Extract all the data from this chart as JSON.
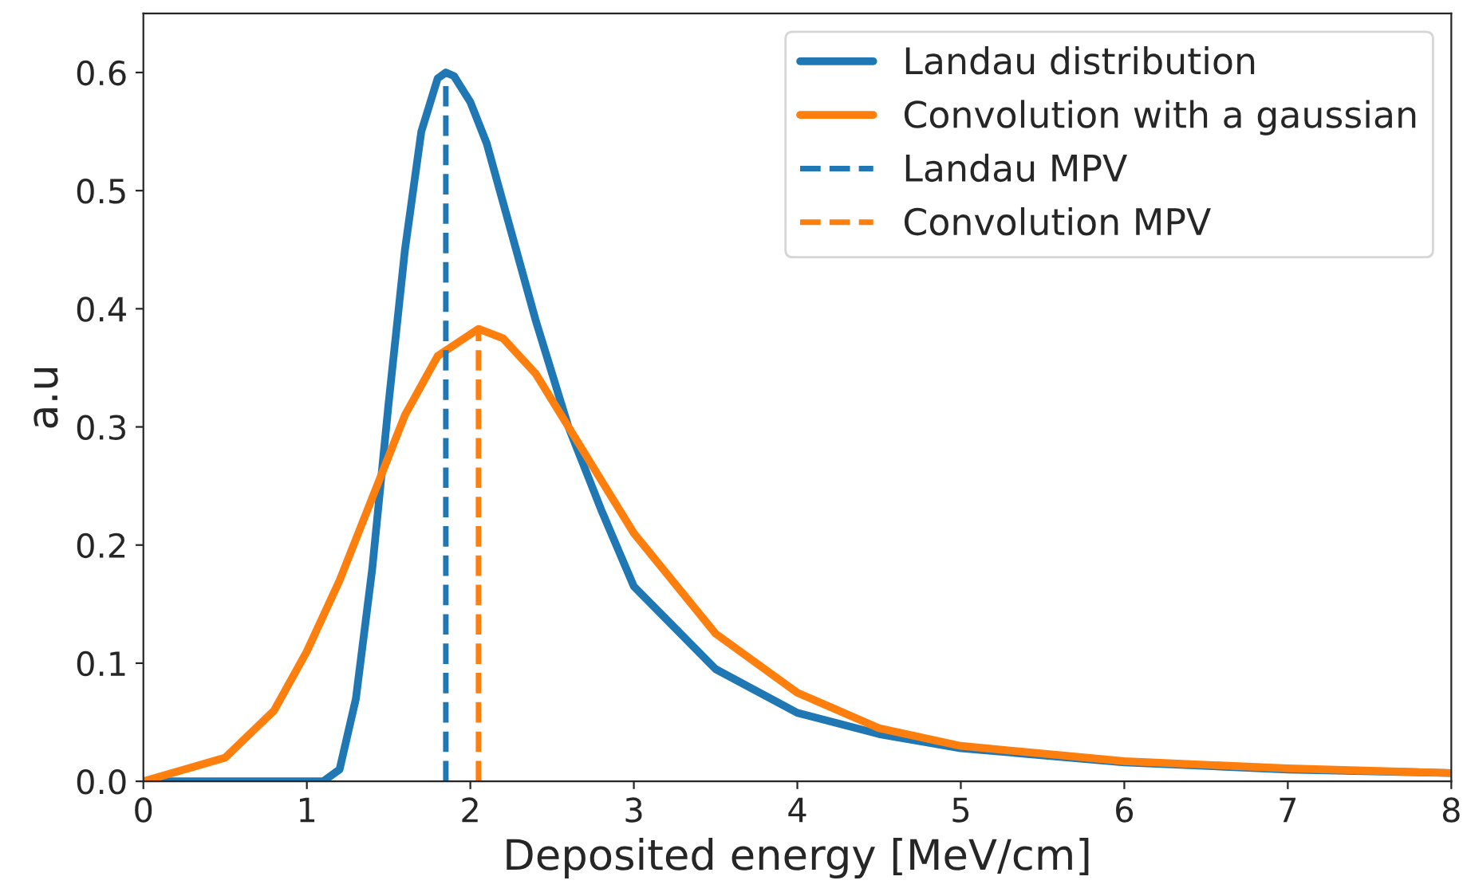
{
  "chart_data": {
    "type": "line",
    "xlabel": "Deposited energy [MeV/cm]",
    "ylabel": "a.u",
    "xlim": [
      0,
      8
    ],
    "ylim": [
      0,
      0.65
    ],
    "xticks": [
      0,
      1,
      2,
      3,
      4,
      5,
      6,
      7,
      8
    ],
    "yticks": [
      {
        "value": 0,
        "label": "0.0"
      },
      {
        "value": 0.1,
        "label": "0.1"
      },
      {
        "value": 0.2,
        "label": "0.2"
      },
      {
        "value": 0.3,
        "label": "0.3"
      },
      {
        "value": 0.4,
        "label": "0.4"
      },
      {
        "value": 0.5,
        "label": "0.5"
      },
      {
        "value": 0.6,
        "label": "0.6"
      }
    ],
    "grid": false,
    "legend": "top right",
    "marker": "none",
    "series": [
      {
        "name": "Landau distribution",
        "color": "#1f77b4",
        "line_style": "solid",
        "x": [
          0,
          1.1,
          1.2,
          1.3,
          1.4,
          1.5,
          1.6,
          1.7,
          1.8,
          1.85,
          1.9,
          2.0,
          2.1,
          2.2,
          2.4,
          2.6,
          2.8,
          3.0,
          3.5,
          4.0,
          4.5,
          5,
          6,
          7,
          8
        ],
        "values": [
          0,
          0,
          0.01,
          0.07,
          0.18,
          0.32,
          0.45,
          0.55,
          0.595,
          0.6,
          0.597,
          0.575,
          0.54,
          0.49,
          0.39,
          0.3,
          0.23,
          0.165,
          0.095,
          0.058,
          0.04,
          0.028,
          0.016,
          0.01,
          0.007
        ]
      },
      {
        "name": "Convolution with a gaussian",
        "color": "#ff7f0e",
        "line_style": "solid",
        "x": [
          0,
          0.5,
          0.8,
          1.0,
          1.2,
          1.4,
          1.5,
          1.6,
          1.8,
          2.05,
          2.2,
          2.4,
          2.6,
          2.8,
          3.0,
          3.5,
          4.0,
          4.5,
          5,
          6,
          7,
          8
        ],
        "values": [
          0,
          0.02,
          0.06,
          0.11,
          0.17,
          0.24,
          0.275,
          0.31,
          0.36,
          0.383,
          0.375,
          0.345,
          0.3,
          0.255,
          0.21,
          0.125,
          0.075,
          0.045,
          0.03,
          0.017,
          0.011,
          0.007
        ]
      },
      {
        "name": "Landau MPV",
        "color": "#1f77b4",
        "line_style": "dashed",
        "x": [
          1.85,
          1.85
        ],
        "values": [
          0,
          0.6
        ]
      },
      {
        "name": "Convolution MPV",
        "color": "#ff7f0e",
        "line_style": "dashed",
        "x": [
          2.05,
          2.05
        ],
        "values": [
          0,
          0.383
        ]
      }
    ]
  }
}
